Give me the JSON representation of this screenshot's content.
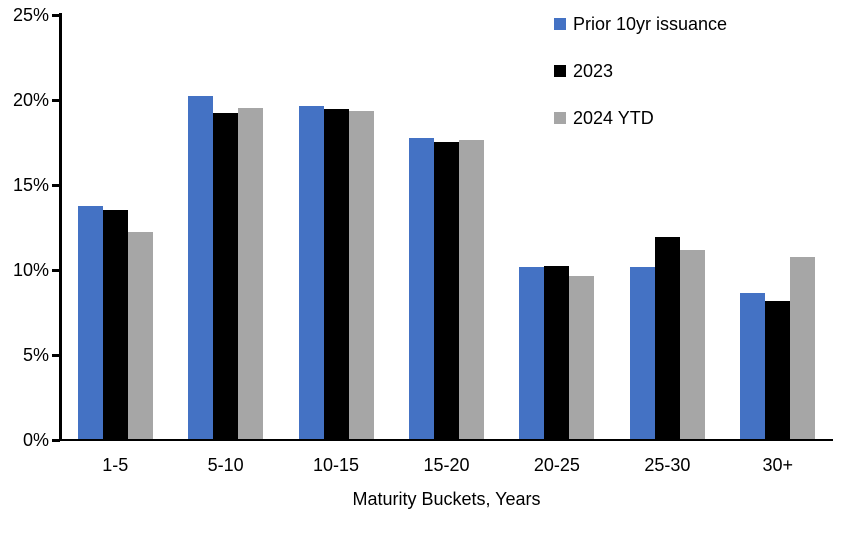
{
  "chart_data": {
    "type": "bar",
    "title": "",
    "categories": [
      "1-5",
      "5-10",
      "10-15",
      "15-20",
      "20-25",
      "25-30",
      "30+"
    ],
    "series": [
      {
        "name": "Prior 10yr issuance",
        "color": "#4472C4",
        "values": [
          13.7,
          20.2,
          19.6,
          17.7,
          10.1,
          10.1,
          8.6
        ]
      },
      {
        "name": "2023",
        "color": "#000000",
        "values": [
          13.5,
          19.2,
          19.4,
          17.5,
          10.2,
          11.9,
          8.1
        ]
      },
      {
        "name": "2024 YTD",
        "color": "#A6A6A6",
        "values": [
          12.2,
          19.5,
          19.3,
          17.6,
          9.6,
          11.1,
          10.7
        ]
      }
    ],
    "xlabel": "Maturity Buckets, Years",
    "ylabel": "",
    "ylim": [
      0,
      25
    ],
    "yticks": [
      {
        "value": 0,
        "label": "0%"
      },
      {
        "value": 5,
        "label": "5%"
      },
      {
        "value": 10,
        "label": "10%"
      },
      {
        "value": 15,
        "label": "15%"
      },
      {
        "value": 20,
        "label": "20%"
      },
      {
        "value": 25,
        "label": "25%"
      }
    ],
    "grid": false,
    "legend_position": "top-right",
    "axis_color": "#000000",
    "background_color": "#FFFFFF"
  }
}
